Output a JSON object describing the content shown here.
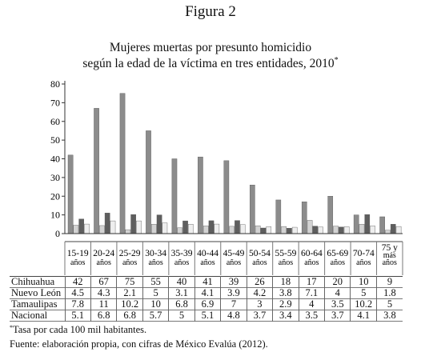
{
  "figure_label": "Figura 2",
  "title_line_1": "Mujeres muertas por presunto homicidio",
  "title_line_2": "según la edad de la víctima en tres entidades, 2010",
  "title_mark": "*",
  "footnote_mark": "*",
  "footnote_1": "Tasa por cada 100 mil habitantes.",
  "footnote_2": "Fuente: elaboración propia, con cifras de México Evalúa (2012).",
  "colors": {
    "Chihuahua": "#8c8c8c",
    "Nuevo León": "#d3d3d3",
    "Tamaulipas": "#5e5e5e",
    "Nacional": "#eeeeee"
  },
  "chart_data": {
    "type": "bar",
    "categories": [
      [
        "15-19",
        "años"
      ],
      [
        "20-24",
        "años"
      ],
      [
        "25-29",
        "años"
      ],
      [
        "30-34",
        "años"
      ],
      [
        "35-39",
        "años"
      ],
      [
        "40-44",
        "años"
      ],
      [
        "45-49",
        "años"
      ],
      [
        "50-54",
        "años"
      ],
      [
        "55-59",
        "años"
      ],
      [
        "60-64",
        "años"
      ],
      [
        "65-69",
        "años"
      ],
      [
        "70-74",
        "años"
      ],
      [
        "75 y",
        "más",
        "años"
      ]
    ],
    "y_ticks": [
      0,
      10,
      20,
      30,
      40,
      50,
      60,
      70,
      80
    ],
    "ylim": [
      0,
      80
    ],
    "grid": false,
    "legend": "table-below",
    "series": [
      {
        "name": "Chihuahua",
        "values": [
          42,
          67,
          75,
          55,
          40,
          41,
          39,
          26,
          18,
          17,
          20,
          10,
          9
        ],
        "labels": [
          "42",
          "67",
          "75",
          "55",
          "40",
          "41",
          "39",
          "26",
          "18",
          "17",
          "20",
          "10",
          "9"
        ]
      },
      {
        "name": "Nuevo León",
        "values": [
          4.5,
          4.3,
          2.1,
          5,
          3.1,
          4.1,
          3.9,
          4.2,
          3.8,
          7.1,
          4,
          5,
          1.8
        ],
        "labels": [
          "4.5",
          "4.3",
          "2.1",
          "5",
          "3.1",
          "4.1",
          "3.9",
          "4.2",
          "3.8",
          "7.1",
          "4",
          "5",
          "1.8"
        ]
      },
      {
        "name": "Tamaulipas",
        "values": [
          7.8,
          11,
          10.2,
          10,
          6.8,
          6.9,
          7,
          3,
          2.9,
          4,
          3.5,
          10.2,
          5
        ],
        "labels": [
          "7.8",
          "11",
          "10.2",
          "10",
          "6.8",
          "6.9",
          "7",
          "3",
          "2.9",
          "4",
          "3.5",
          "10.2",
          "5"
        ]
      },
      {
        "name": "Nacional",
        "values": [
          5.1,
          6.8,
          6.8,
          5.7,
          5,
          5.1,
          4.8,
          3.7,
          3.4,
          3.5,
          3.7,
          4.1,
          3.8
        ],
        "labels": [
          "5.1",
          "6.8",
          "6.8",
          "5.7",
          "5",
          "5.1",
          "4.8",
          "3.7",
          "3.4",
          "3.5",
          "3.7",
          "4.1",
          "3.8"
        ]
      }
    ]
  }
}
